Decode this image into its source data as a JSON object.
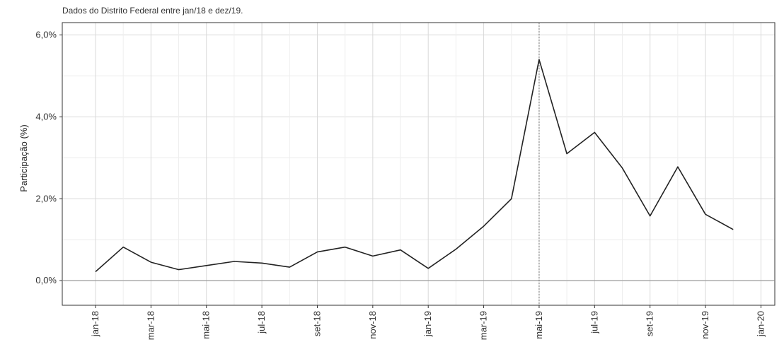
{
  "chart_data": {
    "type": "line",
    "title": "",
    "subtitle": "Dados do Distrito Federal entre jan/18 e dez/19.",
    "xlabel": "",
    "ylabel": "Participação (%)",
    "ylim": [
      -0.6,
      6.3
    ],
    "yticks": [
      0,
      2,
      4,
      6
    ],
    "ytick_labels": [
      "0,0%",
      "2,0%",
      "4,0%",
      "6,0%"
    ],
    "x_tick_labels": [
      "jan-18",
      "mar-18",
      "mai-18",
      "jul-18",
      "set-18",
      "nov-18",
      "jan-19",
      "mar-19",
      "mai-19",
      "jul-19",
      "set-19",
      "nov-19",
      "jan-20"
    ],
    "x": [
      "jan-18",
      "fev-18",
      "mar-18",
      "abr-18",
      "mai-18",
      "jun-18",
      "jul-18",
      "ago-18",
      "set-18",
      "out-18",
      "nov-18",
      "dez-18",
      "jan-19",
      "fev-19",
      "mar-19",
      "abr-19",
      "mai-19",
      "jun-19",
      "jul-19",
      "ago-19",
      "set-19",
      "out-19",
      "nov-19",
      "dez-19"
    ],
    "values": [
      0.22,
      0.82,
      0.45,
      0.27,
      0.37,
      0.47,
      0.43,
      0.33,
      0.7,
      0.82,
      0.6,
      0.75,
      0.3,
      0.77,
      1.33,
      2.0,
      5.4,
      3.1,
      3.62,
      2.75,
      1.58,
      2.78,
      1.62,
      1.25
    ],
    "reference_line": {
      "x": "mai-19"
    },
    "grid": true,
    "line_color": "#222222"
  }
}
